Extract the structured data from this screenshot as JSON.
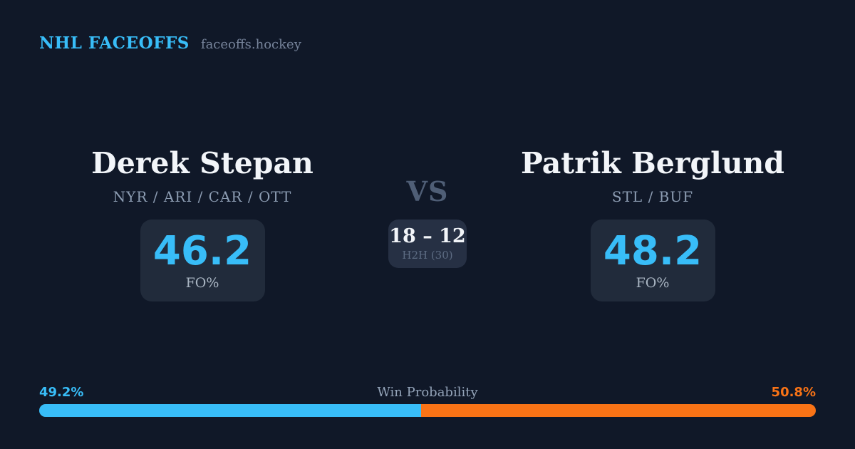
{
  "header": {
    "brand": "NHL FACEOFFS",
    "site": "faceoffs.hockey"
  },
  "players": {
    "left": {
      "name": "Derek Stepan",
      "teams": "NYR / ARI / CAR / OTT",
      "fo_pct": "46.2",
      "fo_label": "FO%"
    },
    "right": {
      "name": "Patrik Berglund",
      "teams": "STL / BUF",
      "fo_pct": "48.2",
      "fo_label": "FO%"
    }
  },
  "matchup": {
    "vs_label": "VS",
    "h2h_score": "18 – 12",
    "h2h_label": "H2H (30)"
  },
  "win_probability": {
    "label": "Win Probability",
    "left_pct_label": "49.2%",
    "right_pct_label": "50.8%",
    "left_value": 49.2,
    "right_value": 50.8
  },
  "colors": {
    "background": "#101828",
    "card": "#212b3b",
    "card_center": "#263044",
    "accent_blue": "#38bdf8",
    "accent_orange": "#f97316"
  }
}
